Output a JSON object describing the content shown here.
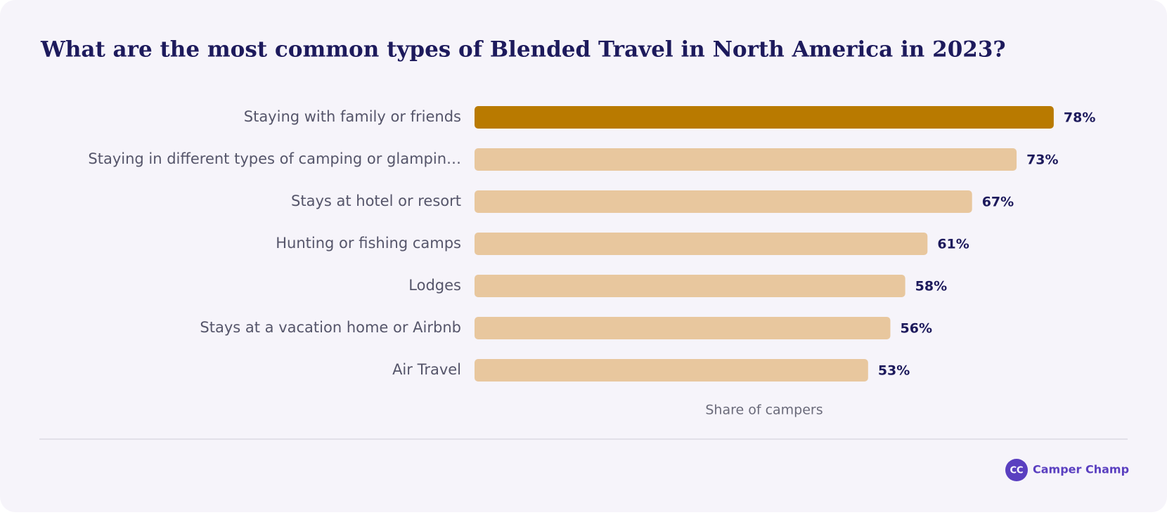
{
  "chart_data": {
    "type": "bar",
    "orientation": "horizontal",
    "title": "What are the most common types of Blended Travel in North America in 2023?",
    "categories": [
      "Staying with family or friends",
      "Staying in different types of camping or glampin…",
      "Stays at hotel or resort",
      "Hunting or fishing camps",
      "Lodges",
      "Stays at a vacation home or Airbnb",
      "Air Travel"
    ],
    "values": [
      78,
      73,
      67,
      61,
      58,
      56,
      53
    ],
    "value_labels": [
      "78%",
      "73%",
      "67%",
      "61%",
      "58%",
      "56%",
      "53%"
    ],
    "colors": [
      "#b97a00",
      "#e8c79e",
      "#e8c79e",
      "#e8c79e",
      "#e8c79e",
      "#e8c79e",
      "#e8c79e"
    ],
    "xlim": [
      0,
      80
    ],
    "xlabel": "Share of campers"
  },
  "footer": {
    "brand": "Camper Champ",
    "logo": "CC"
  }
}
